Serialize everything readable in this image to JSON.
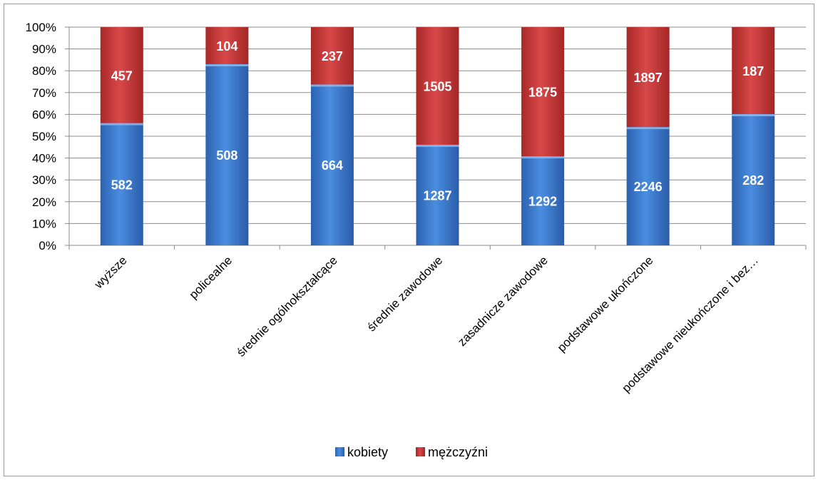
{
  "chart_data": {
    "type": "bar",
    "stacked": "percent",
    "categories": [
      "wyższe",
      "policealne",
      "średnie ogólnokształcące",
      "średnie zawodowe",
      "zasadnicze zawodowe",
      "podstawowe ukończone",
      "podstawowe nieukończone i bez…"
    ],
    "series": [
      {
        "name": "kobiety",
        "values": [
          582,
          508,
          664,
          1287,
          1292,
          2246,
          282
        ],
        "color": "#3f7fd0"
      },
      {
        "name": "mężczyźni",
        "values": [
          457,
          104,
          237,
          1505,
          1875,
          1897,
          187
        ],
        "color": "#c83a3a"
      }
    ],
    "yticks": [
      "0%",
      "10%",
      "20%",
      "30%",
      "40%",
      "50%",
      "60%",
      "70%",
      "80%",
      "90%",
      "100%"
    ],
    "ylim": [
      0,
      100
    ],
    "grid": true,
    "legend_position": "bottom"
  }
}
